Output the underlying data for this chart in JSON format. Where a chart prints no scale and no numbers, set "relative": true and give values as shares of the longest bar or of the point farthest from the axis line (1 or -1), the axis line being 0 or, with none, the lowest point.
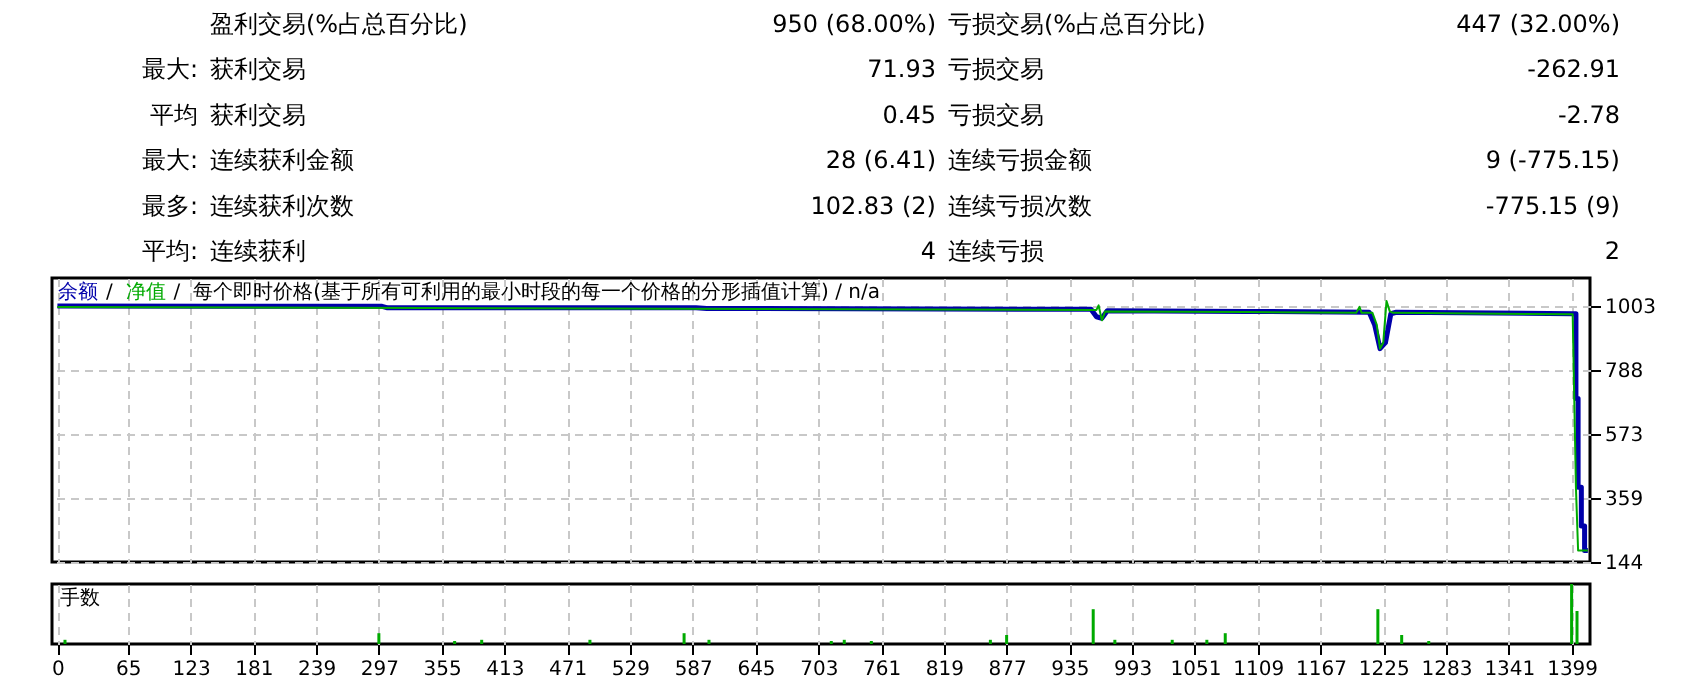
{
  "chart_data": [
    {
      "type": "other",
      "annotations": [
        "盈利交易(%占总百分比)",
        "950 (68.00%)",
        "亏损交易(%占总百分比)",
        "447 (32.00%)",
        "最大:",
        "获利交易",
        "71.93",
        "亏损交易",
        "-262.91",
        "平均",
        "获利交易",
        "0.45",
        "亏损交易",
        "-2.78",
        "最大:",
        "连续获利金额",
        "28 (6.41)",
        "连续亏损金额",
        "9 (-775.15)",
        "最多:",
        "连续获利次数",
        "102.83 (2)",
        "连续亏损次数",
        "-775.15 (9)",
        "平均:",
        "连续获利",
        "4",
        "连续亏损",
        "2"
      ]
    },
    {
      "type": "line",
      "annotations": [
        "/",
        "/"
      ],
      "subtitle": "每个即时价格(基于所有可利用的最小时段的每一个价格的分形插值计算) / n/a",
      "legend": "top left",
      "grid": true,
      "tick_labels": "y",
      "line_style": "solid",
      "xlim": [
        -5,
        1416
      ],
      "ylim": [
        144,
        1097
      ],
      "xticks": [
        0,
        65,
        123,
        181,
        239,
        297,
        355,
        413,
        471,
        529,
        587,
        645,
        703,
        761,
        819,
        877,
        935,
        993,
        1051,
        1109,
        1167,
        1225,
        1283,
        1341,
        1399
      ],
      "yticks": [
        144,
        359,
        573,
        788,
        1003
      ],
      "series": [
        {
          "name": "余额",
          "color": "#0000aa",
          "x": [
            0,
            150,
            300,
            305,
            590,
            600,
            900,
            955,
            960,
            965,
            970,
            1100,
            1212,
            1217,
            1222,
            1227,
            1232,
            1237,
            1400,
            1403,
            1403,
            1405,
            1405,
            1408,
            1408,
            1411,
            1411,
            1414
          ],
          "values": [
            1003,
            1002,
            1002,
            997,
            997,
            995,
            992,
            992,
            967,
            962,
            987,
            985,
            982,
            940,
            860,
            880,
            977,
            982,
            977,
            977,
            693,
            693,
            395,
            395,
            265,
            265,
            183,
            183
          ]
        },
        {
          "name": "净值",
          "color": "#00aa00",
          "x": [
            0,
            960,
            962,
            965,
            968,
            1100,
            1200,
            1203,
            1205,
            1215,
            1219,
            1222,
            1225,
            1228,
            1231,
            1234,
            1400,
            1403,
            1405,
            1414
          ],
          "values": [
            1000,
            990,
            1005,
            955,
            985,
            983,
            980,
            1000,
            980,
            980,
            940,
            860,
            880,
            1020,
            985,
            980,
            975,
            395,
            183,
            183
          ]
        }
      ]
    },
    {
      "type": "bar",
      "ylabel": "手数",
      "relative": true,
      "grid": "x",
      "tick_labels": "x",
      "color": "#00aa00",
      "xlim": [
        -5,
        1416
      ],
      "xticks": [
        0,
        65,
        123,
        181,
        239,
        297,
        355,
        413,
        471,
        529,
        587,
        645,
        703,
        761,
        819,
        877,
        935,
        993,
        1051,
        1109,
        1167,
        1225,
        1283,
        1341,
        1399
      ],
      "x": [
        7,
        297,
        367,
        392,
        492,
        579,
        602,
        715,
        727,
        752,
        862,
        877,
        957,
        977,
        1030,
        1062,
        1079,
        1220,
        1242,
        1267,
        1399,
        1404
      ],
      "values": [
        0.07,
        0.18,
        0.05,
        0.07,
        0.07,
        0.18,
        0.07,
        0.05,
        0.07,
        0.05,
        0.07,
        0.15,
        0.58,
        0.07,
        0.07,
        0.07,
        0.18,
        0.58,
        0.15,
        0.05,
        1,
        0.55
      ]
    }
  ]
}
